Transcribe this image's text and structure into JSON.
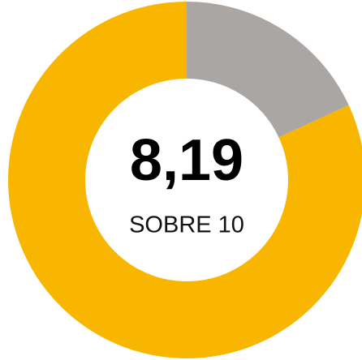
{
  "chart_data": {
    "type": "donut",
    "value": 8.19,
    "value_label": "8,19",
    "subtitle": "SOBRE 10",
    "range": [
      0,
      10
    ],
    "color": "#f8b600",
    "rest_color": "#aaa6a4"
  }
}
